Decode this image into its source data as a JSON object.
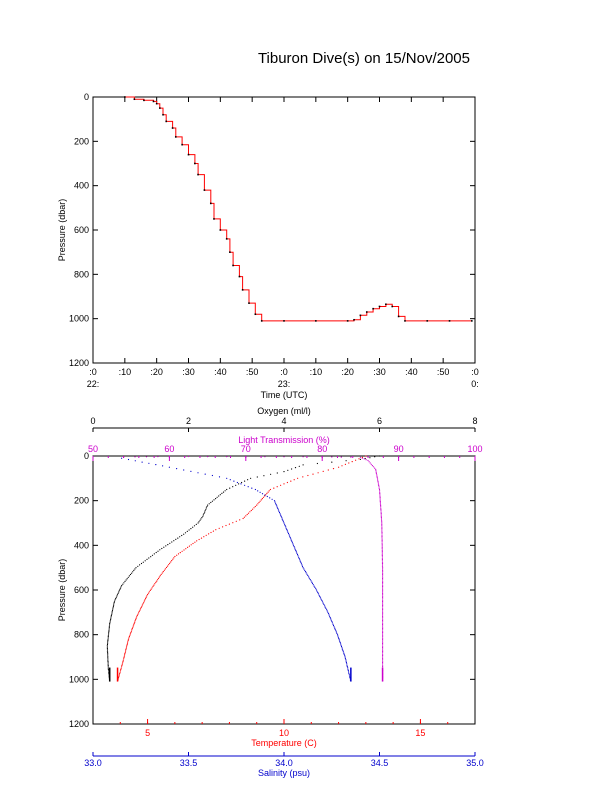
{
  "title": "Tiburon Dive(s) on 15/Nov/2005",
  "chart_data": [
    {
      "type": "line",
      "xlabel": "Time (UTC)",
      "ylabel": "Pressure (dbar)",
      "x_unit": "minutes after 22:00 UTC",
      "xlim": [
        0,
        120
      ],
      "ylim": [
        1200,
        0
      ],
      "y_ticks": [
        0,
        200,
        400,
        600,
        800,
        1000,
        1200
      ],
      "x_ticks": [
        {
          "v": 0,
          "top": ":0",
          "bottom": "22:"
        },
        {
          "v": 10,
          "top": ":10",
          "bottom": ""
        },
        {
          "v": 20,
          "top": ":20",
          "bottom": ""
        },
        {
          "v": 30,
          "top": ":30",
          "bottom": ""
        },
        {
          "v": 40,
          "top": ":40",
          "bottom": ""
        },
        {
          "v": 50,
          "top": ":50",
          "bottom": ""
        },
        {
          "v": 60,
          "top": ":0",
          "bottom": "23:"
        },
        {
          "v": 70,
          "top": ":10",
          "bottom": ""
        },
        {
          "v": 80,
          "top": ":20",
          "bottom": ""
        },
        {
          "v": 90,
          "top": ":30",
          "bottom": ""
        },
        {
          "v": 100,
          "top": ":40",
          "bottom": ""
        },
        {
          "v": 110,
          "top": ":50",
          "bottom": ""
        },
        {
          "v": 120,
          "top": ":0",
          "bottom": "0:"
        }
      ],
      "series": [
        {
          "color": "#ff0000",
          "points": [
            [
              10,
              0
            ],
            [
              13,
              10
            ],
            [
              16,
              15
            ],
            [
              19,
              20
            ],
            [
              20,
              30
            ],
            [
              21,
              50
            ],
            [
              22,
              80
            ],
            [
              23,
              110
            ],
            [
              25,
              140
            ],
            [
              26,
              180
            ],
            [
              28,
              215
            ],
            [
              30,
              260
            ],
            [
              32,
              300
            ],
            [
              33,
              350
            ],
            [
              35,
              420
            ],
            [
              37,
              480
            ],
            [
              38,
              550
            ],
            [
              40,
              600
            ],
            [
              42,
              640
            ],
            [
              43,
              700
            ],
            [
              44,
              760
            ],
            [
              46,
              810
            ],
            [
              47,
              870
            ],
            [
              49,
              930
            ],
            [
              51,
              980
            ],
            [
              53,
              1010
            ],
            [
              60,
              1010
            ],
            [
              70,
              1010
            ],
            [
              80,
              1010
            ],
            [
              82,
              1005
            ],
            [
              84,
              985
            ],
            [
              86,
              970
            ],
            [
              88,
              955
            ],
            [
              90,
              945
            ],
            [
              92,
              935
            ],
            [
              94,
              945
            ],
            [
              96,
              990
            ],
            [
              98,
              1010
            ],
            [
              105,
              1010
            ],
            [
              112,
              1010
            ],
            [
              119,
              1010
            ]
          ]
        }
      ]
    },
    {
      "type": "scatter",
      "ylabel": "Pressure (dbar)",
      "ylim": [
        1200,
        0
      ],
      "y_ticks": [
        0,
        200,
        400,
        600,
        800,
        1000,
        1200
      ],
      "axes": {
        "oxygen": {
          "label": "Oxygen (ml/l)",
          "range": [
            0,
            8
          ],
          "ticks": [
            0,
            2,
            4,
            6,
            8
          ],
          "color": "#000000"
        },
        "light_transmission": {
          "label": "Light Transmission (%)",
          "range": [
            50,
            100
          ],
          "ticks": [
            50,
            60,
            70,
            80,
            90,
            100
          ],
          "color": "#cc00cc"
        },
        "temperature": {
          "label": "Temperature (C)",
          "range": [
            3,
            17
          ],
          "ticks": [
            5,
            10,
            15
          ],
          "color": "#ff0000"
        },
        "salinity": {
          "label": "Salinity (psu)",
          "range": [
            33.0,
            35.0
          ],
          "ticks": [
            "33.0",
            "33.5",
            "34.0",
            "34.5",
            "35.0"
          ],
          "color": "#0000cc"
        }
      },
      "series": [
        {
          "axis": "oxygen",
          "color": "#000000",
          "points": [
            [
              6.0,
              0
            ],
            [
              5.6,
              15
            ],
            [
              4.4,
              40
            ],
            [
              4.0,
              70
            ],
            [
              3.3,
              100
            ],
            [
              2.8,
              150
            ],
            [
              2.4,
              220
            ],
            [
              2.3,
              270
            ],
            [
              2.2,
              300
            ],
            [
              1.9,
              350
            ],
            [
              1.4,
              420
            ],
            [
              0.9,
              500
            ],
            [
              0.6,
              580
            ],
            [
              0.45,
              650
            ],
            [
              0.35,
              750
            ],
            [
              0.3,
              850
            ],
            [
              0.32,
              950
            ],
            [
              0.35,
              1010
            ]
          ]
        },
        {
          "axis": "light_transmission",
          "color": "#cc00cc",
          "points": [
            [
              54,
              5
            ],
            [
              60,
              2
            ],
            [
              70,
              3
            ],
            [
              80,
              4
            ],
            [
              85,
              6
            ],
            [
              86,
              20
            ],
            [
              87,
              60
            ],
            [
              87.5,
              150
            ],
            [
              87.8,
              300
            ],
            [
              87.9,
              500
            ],
            [
              87.9,
              700
            ],
            [
              87.9,
              900
            ],
            [
              87.9,
              1010
            ]
          ]
        },
        {
          "axis": "temperature",
          "color": "#ff0000",
          "points": [
            [
              13,
              0
            ],
            [
              12,
              50
            ],
            [
              10.5,
              100
            ],
            [
              9.5,
              150
            ],
            [
              9,
              220
            ],
            [
              8.5,
              280
            ],
            [
              7.5,
              330
            ],
            [
              6.8,
              380
            ],
            [
              6.0,
              450
            ],
            [
              5.5,
              530
            ],
            [
              5.0,
              620
            ],
            [
              4.6,
              720
            ],
            [
              4.3,
              820
            ],
            [
              4.1,
              920
            ],
            [
              3.9,
              1010
            ]
          ]
        },
        {
          "axis": "salinity",
          "color": "#0000cc",
          "points": [
            [
              33.15,
              10
            ],
            [
              33.4,
              50
            ],
            [
              33.7,
              100
            ],
            [
              33.85,
              150
            ],
            [
              33.95,
              200
            ],
            [
              34.0,
              300
            ],
            [
              34.05,
              400
            ],
            [
              34.1,
              500
            ],
            [
              34.17,
              600
            ],
            [
              34.23,
              700
            ],
            [
              34.28,
              800
            ],
            [
              34.32,
              900
            ],
            [
              34.35,
              1010
            ]
          ]
        }
      ]
    }
  ]
}
